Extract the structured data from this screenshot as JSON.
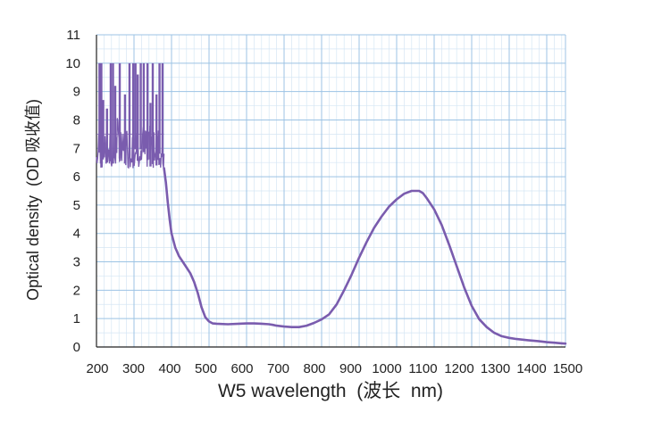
{
  "chart_data": {
    "type": "line",
    "xlabel": "W5 wavelength  (波长  nm)",
    "ylabel": "Optical density  (OD 吸收值)",
    "xlim": [
      200,
      1450
    ],
    "ylim": [
      0,
      11
    ],
    "x_ticks": [
      200,
      300,
      400,
      500,
      600,
      700,
      800,
      900,
      1000,
      1100,
      1200,
      1300,
      1400,
      1500
    ],
    "y_ticks": [
      0,
      1,
      2,
      3,
      4,
      5,
      6,
      7,
      8,
      9,
      10,
      11
    ],
    "grid": true,
    "colors": {
      "line": "#7a5cae",
      "grid_major": "#9cc3e4",
      "grid_minor": "#d5e6f4",
      "axis": "#222222"
    },
    "series": [
      {
        "values": [
          [
            380,
            6.3
          ],
          [
            385,
            5.8
          ],
          [
            390,
            5.1
          ],
          [
            395,
            4.5
          ],
          [
            400,
            4.0
          ],
          [
            410,
            3.5
          ],
          [
            420,
            3.2
          ],
          [
            430,
            3.0
          ],
          [
            440,
            2.8
          ],
          [
            450,
            2.6
          ],
          [
            460,
            2.3
          ],
          [
            470,
            1.9
          ],
          [
            480,
            1.4
          ],
          [
            490,
            1.05
          ],
          [
            500,
            0.9
          ],
          [
            510,
            0.83
          ],
          [
            520,
            0.82
          ],
          [
            550,
            0.8
          ],
          [
            580,
            0.82
          ],
          [
            600,
            0.83
          ],
          [
            620,
            0.83
          ],
          [
            640,
            0.82
          ],
          [
            660,
            0.8
          ],
          [
            670,
            0.78
          ],
          [
            680,
            0.75
          ],
          [
            700,
            0.72
          ],
          [
            720,
            0.7
          ],
          [
            740,
            0.7
          ],
          [
            760,
            0.75
          ],
          [
            780,
            0.85
          ],
          [
            800,
            0.97
          ],
          [
            820,
            1.15
          ],
          [
            840,
            1.5
          ],
          [
            860,
            2.0
          ],
          [
            880,
            2.55
          ],
          [
            900,
            3.15
          ],
          [
            920,
            3.7
          ],
          [
            940,
            4.2
          ],
          [
            960,
            4.6
          ],
          [
            980,
            4.95
          ],
          [
            1000,
            5.2
          ],
          [
            1020,
            5.4
          ],
          [
            1040,
            5.5
          ],
          [
            1060,
            5.5
          ],
          [
            1070,
            5.42
          ],
          [
            1080,
            5.25
          ],
          [
            1100,
            4.85
          ],
          [
            1120,
            4.3
          ],
          [
            1140,
            3.6
          ],
          [
            1160,
            2.85
          ],
          [
            1180,
            2.1
          ],
          [
            1200,
            1.45
          ],
          [
            1220,
            0.98
          ],
          [
            1240,
            0.7
          ],
          [
            1260,
            0.5
          ],
          [
            1280,
            0.38
          ],
          [
            1300,
            0.32
          ],
          [
            1320,
            0.28
          ],
          [
            1350,
            0.24
          ],
          [
            1380,
            0.2
          ],
          [
            1400,
            0.17
          ],
          [
            1420,
            0.15
          ],
          [
            1440,
            0.13
          ],
          [
            1450,
            0.12
          ]
        ],
        "noise_region": {
          "x_range": [
            200,
            380
          ],
          "low_band": [
            6.3,
            7.0
          ],
          "mid_band": 7.5,
          "spikes": [
            [
              208,
              10.0
            ],
            [
              213,
              10.0
            ],
            [
              218,
              8.7
            ],
            [
              228,
              8.4
            ],
            [
              238,
              10.0
            ],
            [
              244,
              10.0
            ],
            [
              250,
              9.2
            ],
            [
              262,
              10.0
            ],
            [
              276,
              8.9
            ],
            [
              288,
              10.0
            ],
            [
              298,
              10.0
            ],
            [
              304,
              10.0
            ],
            [
              310,
              9.6
            ],
            [
              318,
              10.0
            ],
            [
              326,
              10.0
            ],
            [
              336,
              10.0
            ],
            [
              344,
              8.6
            ],
            [
              350,
              10.0
            ],
            [
              360,
              8.9
            ],
            [
              368,
              10.0
            ],
            [
              376,
              10.0
            ]
          ]
        }
      }
    ]
  }
}
